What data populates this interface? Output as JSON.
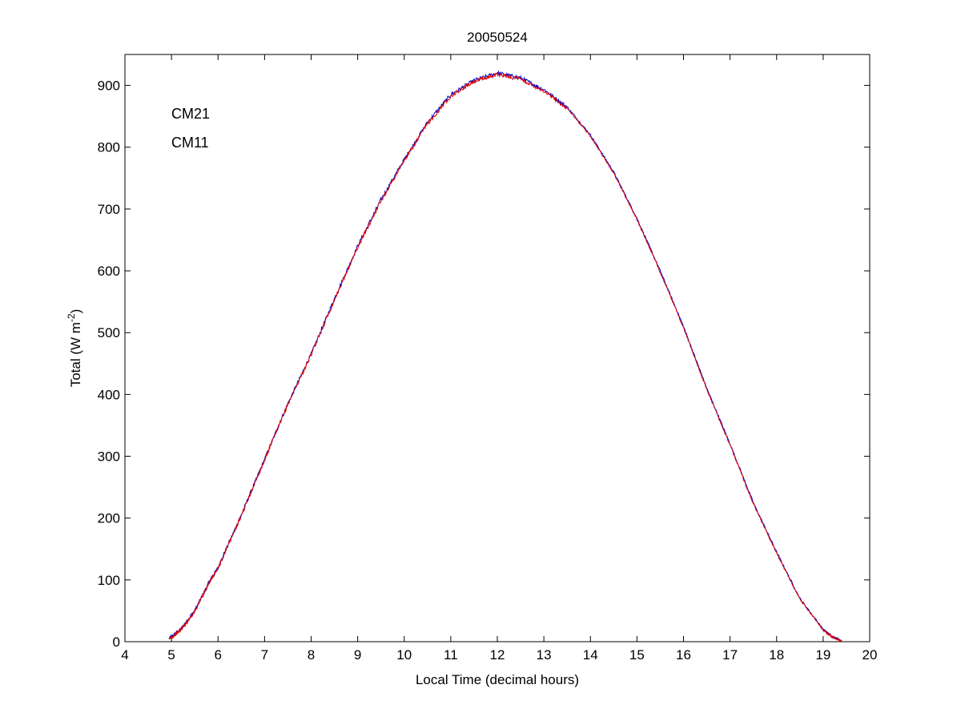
{
  "chart_data": {
    "type": "line",
    "title": "20050524",
    "xlabel": "Local Time (decimal hours)",
    "ylabel": "Total (W m",
    "ylabel_superscript": "-2",
    "ylabel_suffix": ")",
    "xlim": [
      4,
      20
    ],
    "ylim": [
      0,
      950
    ],
    "xticks": [
      4,
      5,
      6,
      7,
      8,
      9,
      10,
      11,
      12,
      13,
      14,
      15,
      16,
      17,
      18,
      19,
      20
    ],
    "yticks": [
      0,
      100,
      200,
      300,
      400,
      500,
      600,
      700,
      800,
      900
    ],
    "grid": false,
    "legend_position": "top-left",
    "series": [
      {
        "name": "CM21",
        "color": "#0000cc",
        "x": [
          4.95,
          5.2,
          5.5,
          5.8,
          6.0,
          6.5,
          7.0,
          7.5,
          8.0,
          8.5,
          9.0,
          9.5,
          10.0,
          10.5,
          11.0,
          11.5,
          12.0,
          12.5,
          13.0,
          13.5,
          14.0,
          14.5,
          15.0,
          15.5,
          16.0,
          16.5,
          17.0,
          17.5,
          18.0,
          18.5,
          19.0,
          19.2,
          19.4
        ],
        "y": [
          5,
          20,
          50,
          95,
          120,
          205,
          295,
          385,
          465,
          555,
          640,
          715,
          780,
          840,
          885,
          908,
          920,
          912,
          893,
          865,
          820,
          760,
          685,
          600,
          510,
          410,
          320,
          225,
          145,
          70,
          20,
          8,
          2
        ]
      },
      {
        "name": "CM11",
        "color": "#dd0000",
        "x": [
          4.95,
          5.2,
          5.5,
          5.8,
          6.0,
          6.5,
          7.0,
          7.5,
          8.0,
          8.5,
          9.0,
          9.5,
          10.0,
          10.5,
          11.0,
          11.5,
          12.0,
          12.5,
          13.0,
          13.5,
          14.0,
          14.5,
          15.0,
          15.5,
          16.0,
          16.5,
          17.0,
          17.5,
          18.0,
          18.5,
          19.0,
          19.2,
          19.4
        ],
        "y": [
          4,
          19,
          49,
          94,
          119,
          204,
          294,
          384,
          464,
          553,
          638,
          713,
          778,
          838,
          883,
          906,
          918,
          910,
          891,
          863,
          818,
          758,
          683,
          598,
          508,
          408,
          318,
          223,
          143,
          69,
          19,
          7,
          1
        ]
      }
    ]
  }
}
